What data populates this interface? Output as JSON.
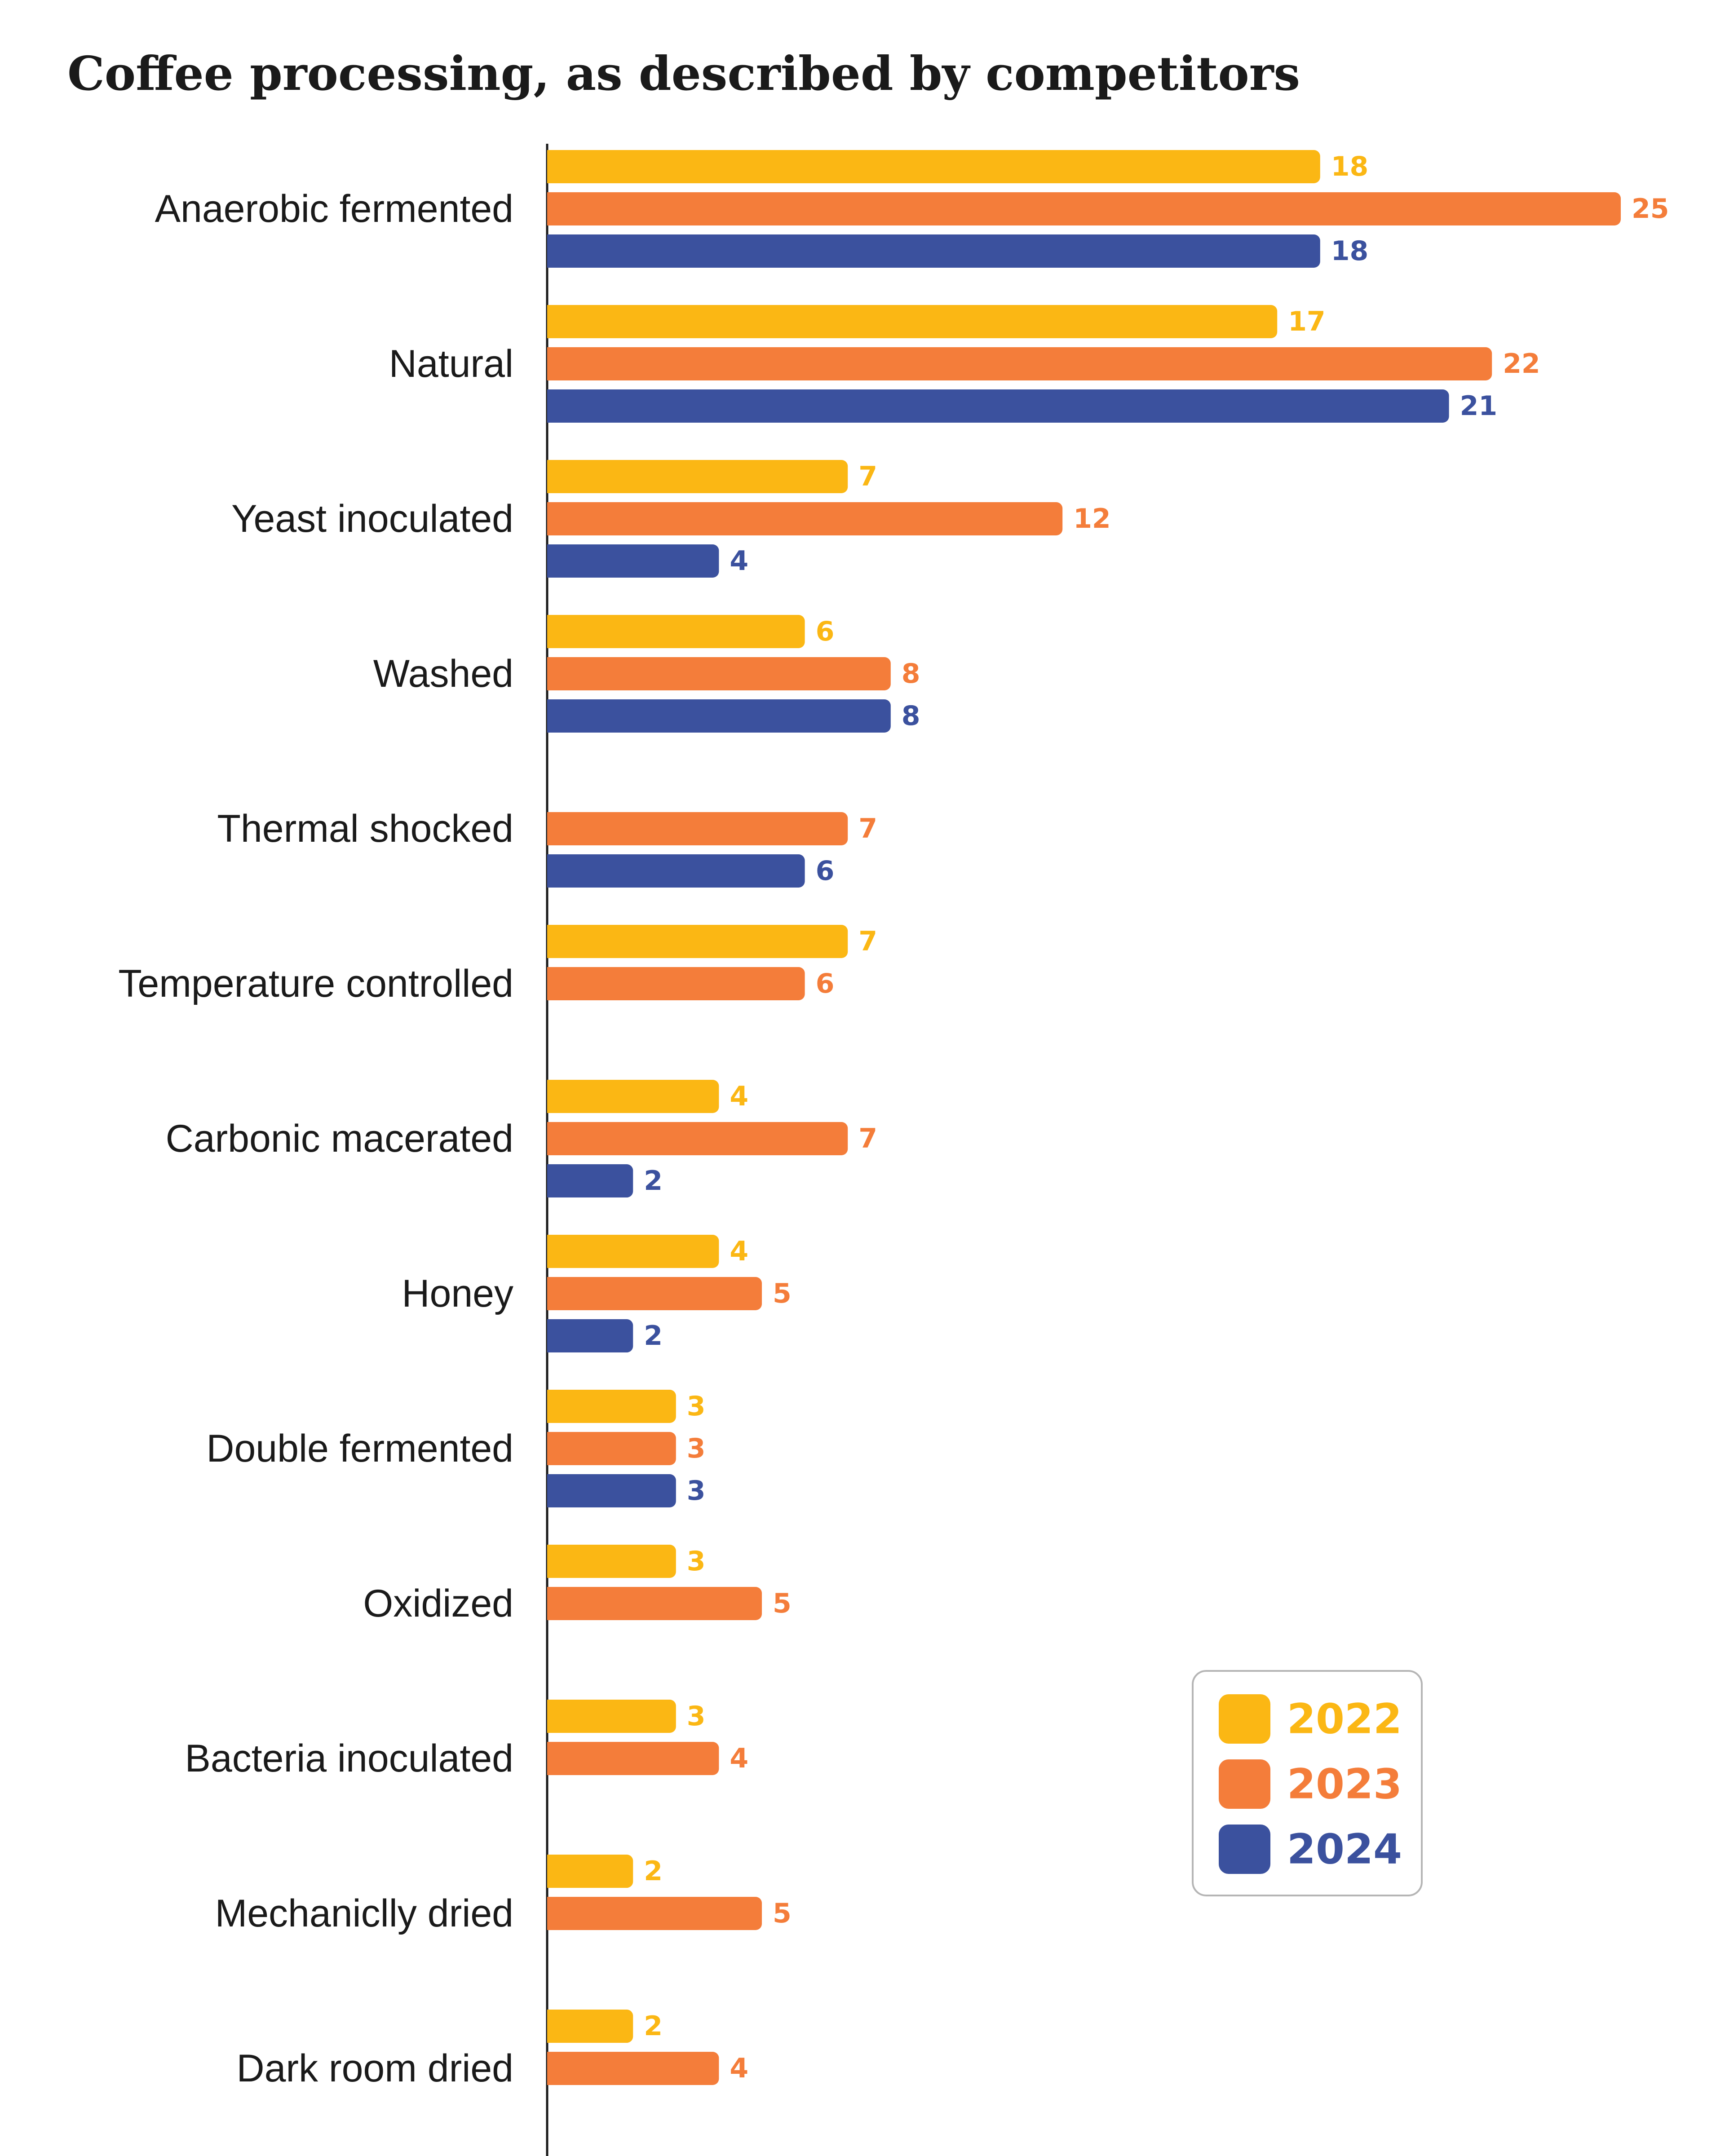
{
  "chart_data": {
    "type": "bar",
    "orientation": "horizontal",
    "title": "Coffee processing, as described by competitors",
    "categories": [
      "Anaerobic fermented",
      "Natural",
      "Yeast inoculated",
      "Washed",
      "Thermal shocked",
      "Temperature controlled",
      "Carbonic macerated",
      "Honey",
      "Double fermented",
      "Oxidized",
      "Bacteria inoculated",
      "Mechaniclly dried",
      "Dark room dried"
    ],
    "series": [
      {
        "name": "2022",
        "color": "#FBB714",
        "values": [
          18,
          17,
          7,
          6,
          null,
          7,
          4,
          4,
          3,
          3,
          3,
          2,
          2
        ]
      },
      {
        "name": "2023",
        "color": "#F47D3A",
        "values": [
          25,
          22,
          12,
          8,
          7,
          6,
          7,
          5,
          3,
          5,
          4,
          5,
          4
        ]
      },
      {
        "name": "2024",
        "color": "#3B519E",
        "values": [
          18,
          21,
          4,
          8,
          6,
          null,
          2,
          2,
          3,
          null,
          null,
          null,
          null
        ]
      }
    ],
    "xlim": [
      0,
      25
    ],
    "grid": false,
    "legend_position": "bottom-right"
  }
}
